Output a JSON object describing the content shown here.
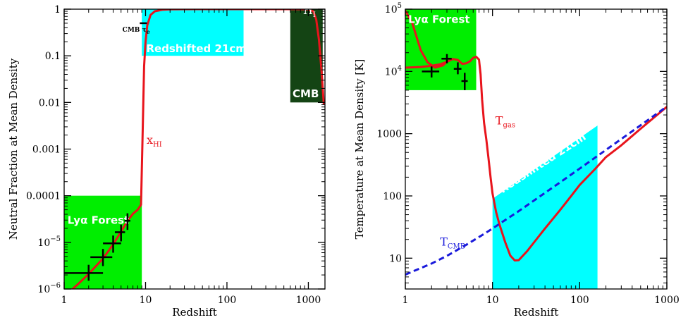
{
  "colors": {
    "curve_red": "#e8141c",
    "cmb_blue": "#1a1adb",
    "green": "#00ee00",
    "cyan": "#00ffff",
    "dark_green": "#144414",
    "black": "#000000"
  },
  "chart_data": [
    {
      "type": "line",
      "xlabel": "Redshift",
      "ylabel": "Neutral Fraction at Mean Density",
      "xscale": "log",
      "yscale": "log",
      "xlim": [
        1,
        1600
      ],
      "ylim": [
        1e-06,
        1
      ],
      "x_ticks": [
        {
          "value": 1,
          "label": "1"
        },
        {
          "value": 10,
          "label": "10"
        },
        {
          "value": 100,
          "label": "100"
        },
        {
          "value": 1000,
          "label": "1000"
        }
      ],
      "y_ticks": [
        {
          "value": 1e-06,
          "label": "10",
          "sup": "−6"
        },
        {
          "value": 1e-05,
          "label": "10",
          "sup": "−5"
        },
        {
          "value": 0.0001,
          "label": "0.0001",
          "sup": ""
        },
        {
          "value": 0.001,
          "label": "0.001",
          "sup": ""
        },
        {
          "value": 0.01,
          "label": "0.01",
          "sup": ""
        },
        {
          "value": 0.1,
          "label": "0.1",
          "sup": ""
        },
        {
          "value": 1,
          "label": "1",
          "sup": ""
        }
      ],
      "regions": [
        {
          "name": "lya",
          "label": "Lyα Forest",
          "color": "#00ee00",
          "x": [
            1,
            9
          ],
          "y": [
            1e-06,
            0.0001
          ],
          "label_at": [
            1.1,
            2.5e-05
          ]
        },
        {
          "name": "21cm",
          "label": "Redshifted 21cm",
          "color": "#00ffff",
          "x": [
            9,
            160
          ],
          "y": [
            0.1,
            1
          ],
          "label_at": [
            10.2,
            0.12
          ]
        },
        {
          "name": "cmb",
          "label": "CMB",
          "color": "#144414",
          "x": [
            600,
            1500
          ],
          "y": [
            0.01,
            1
          ],
          "label_at": [
            640,
            0.013
          ]
        }
      ],
      "series": [
        {
          "name": "x_HI",
          "color": "#e8141c",
          "x": [
            1.1,
            1.5,
            2,
            3,
            4,
            5,
            6,
            7,
            8,
            8.8,
            9.2,
            9.6,
            10,
            10.5,
            11.5,
            13,
            16,
            20,
            40,
            100,
            300,
            700,
            1000,
            1150,
            1250,
            1350,
            1450,
            1550
          ],
          "y": [
            8e-07,
            1.3e-06,
            2.1e-06,
            4.5e-06,
            9e-06,
            1.7e-05,
            2.9e-05,
            4.1e-05,
            5e-05,
            6.4e-05,
            0.002,
            0.06,
            0.2,
            0.45,
            0.75,
            0.9,
            0.97,
            0.99,
            1,
            1,
            1,
            1,
            0.99,
            0.9,
            0.6,
            0.22,
            0.05,
            0.009
          ]
        }
      ],
      "data_points": [
        {
          "x": 2,
          "y": 2.2e-06,
          "xerr": [
            1,
            3
          ],
          "yerr": [
            1.5e-06,
            3.3e-06
          ]
        },
        {
          "x": 3,
          "y": 4.8e-06,
          "xerr": [
            2.1,
            3.9
          ],
          "yerr": [
            3.1e-06,
            7.2e-06
          ]
        },
        {
          "x": 4,
          "y": 9.5e-06,
          "xerr": [
            3,
            5
          ],
          "yerr": [
            6e-06,
            1.4e-05
          ]
        },
        {
          "x": 5,
          "y": 1.65e-05,
          "xerr": [
            4.2,
            5.6
          ],
          "yerr": [
            1.05e-05,
            2.4e-05
          ]
        },
        {
          "x": 6,
          "y": 2.9e-05,
          "xerr": [
            5.5,
            6.5
          ],
          "yerr": [
            1.85e-05,
            4.2e-05
          ]
        }
      ],
      "cmb_tau": {
        "label": "CMB τ",
        "sub": "e",
        "x": [
          8.5,
          10.4
        ],
        "y": 0.5,
        "label_at": [
          5.2,
          0.33
        ]
      },
      "annotations": [
        {
          "text": "x",
          "sub": "HI",
          "x": 10.3,
          "y": 0.0013,
          "color": "#e8141c"
        },
        {
          "text": "H",
          "sub": "I",
          "x": 860,
          "y": 0.78,
          "color": "#ffffff"
        }
      ]
    },
    {
      "type": "line",
      "xlabel": "Redshift",
      "ylabel": "Temperature at Mean Density [K]",
      "xscale": "log",
      "yscale": "log",
      "xlim": [
        1,
        1000
      ],
      "ylim": [
        3.2,
        100000
      ],
      "x_ticks": [
        {
          "value": 1,
          "label": "1"
        },
        {
          "value": 10,
          "label": "10"
        },
        {
          "value": 100,
          "label": "100"
        },
        {
          "value": 1000,
          "label": "1000"
        }
      ],
      "y_ticks": [
        {
          "value": 10,
          "label": "10",
          "sup": ""
        },
        {
          "value": 100,
          "label": "100",
          "sup": ""
        },
        {
          "value": 1000,
          "label": "1000",
          "sup": ""
        },
        {
          "value": 10000,
          "label": "10",
          "sup": "4"
        },
        {
          "value": 100000,
          "label": "10",
          "sup": "5"
        }
      ],
      "regions": [
        {
          "name": "lya",
          "label": "Lyα Forest",
          "color": "#00ee00",
          "x": [
            1,
            6.5
          ],
          "y": [
            5000,
            100000
          ],
          "label_at": [
            1.08,
            60000
          ]
        },
        {
          "name": "21cm",
          "label": "Redshifted 21cm",
          "color": "#00ffff",
          "polygon": [
            [
              10,
              3.2
            ],
            [
              160,
              3.2
            ],
            [
              160,
              1350
            ],
            [
              10,
              90
            ]
          ],
          "label_at": [
            13,
            110
          ],
          "label_angle": -33
        }
      ],
      "series": [
        {
          "name": "T_gas",
          "color": "#e8141c",
          "x": [
            1,
            1.5,
            2,
            2.5,
            3,
            3.5,
            4,
            4.5,
            5,
            5.5,
            6,
            6.5,
            7,
            7.3,
            7.6,
            8,
            8.5,
            9,
            9.5,
            10,
            11,
            12,
            14,
            16,
            18,
            20,
            25,
            30,
            40,
            60,
            80,
            100,
            150,
            200,
            300,
            500,
            1000
          ],
          "y": [
            11500,
            11800,
            12300,
            13000,
            14300,
            15800,
            15300,
            13200,
            13500,
            14500,
            16500,
            17200,
            15500,
            9000,
            3500,
            1500,
            800,
            400,
            200,
            110,
            55,
            35,
            18,
            11,
            9.2,
            9.3,
            13,
            18,
            30,
            60,
            100,
            150,
            270,
            420,
            650,
            1200,
            2700
          ]
        },
        {
          "name": "T_gas_high",
          "color": "#e8141c",
          "x": [
            1,
            1.2,
            1.5,
            1.8,
            2.2,
            2.7,
            3
          ],
          "y": [
            95000,
            60000,
            22000,
            14000,
            11500,
            12500,
            14300
          ]
        },
        {
          "name": "T_CMB",
          "color": "#1a1adb",
          "dashed": true,
          "x": [
            1,
            2,
            3,
            5,
            8,
            10,
            20,
            40,
            60,
            100,
            200,
            400,
            600,
            1000
          ],
          "y": [
            5.45,
            8.2,
            10.9,
            16.4,
            24.5,
            30,
            57,
            112,
            166,
            275,
            548,
            1093,
            1638,
            2728
          ]
        }
      ],
      "data_points": [
        {
          "x": 2,
          "y": 10000,
          "xerr": [
            1.55,
            2.45
          ],
          "yerr": [
            8000,
            12000
          ]
        },
        {
          "x": 3,
          "y": 16000,
          "xerr": [
            2.6,
            3.4
          ],
          "yerr": [
            13500,
            19000
          ]
        },
        {
          "x": 4,
          "y": 11000,
          "xerr": [
            3.6,
            4.4
          ],
          "yerr": [
            9000,
            14000
          ]
        },
        {
          "x": 4.8,
          "y": 7000,
          "xerr": [
            4.4,
            5.2
          ],
          "yerr": [
            5000,
            9500
          ]
        }
      ],
      "annotations": [
        {
          "text": "T",
          "sub": "gas",
          "x": 10.8,
          "y": 1400,
          "color": "#e8141c"
        },
        {
          "text": "T",
          "sub": "CMB",
          "x": 2.5,
          "y": 16,
          "color": "#1a1adb"
        }
      ]
    }
  ]
}
